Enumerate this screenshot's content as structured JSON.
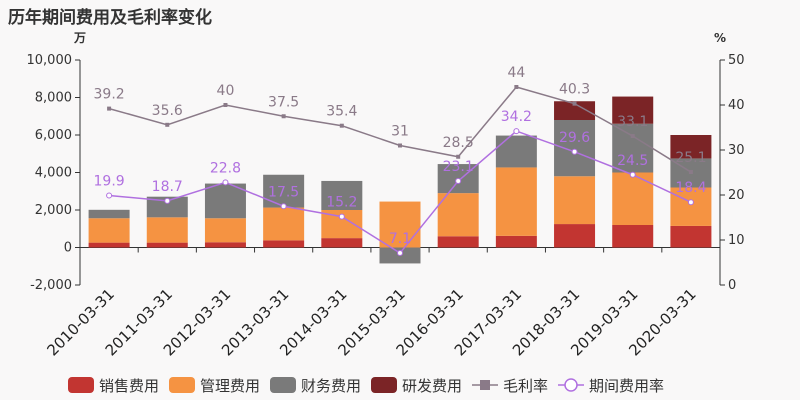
{
  "title": "历年期间费用及毛利率变化",
  "chart_data": {
    "type": "bar",
    "stacked": true,
    "title": "历年期间费用及毛利率变化",
    "y_left_unit": "万",
    "y_right_unit": "%",
    "ylim_left": [
      -2000,
      10000
    ],
    "ylim_right": [
      0,
      50
    ],
    "y_left_ticks": [
      "-2,000",
      "0",
      "2,000",
      "4,000",
      "6,000",
      "8,000",
      "10,000"
    ],
    "y_right_ticks": [
      "0",
      "10",
      "20",
      "30",
      "40",
      "50"
    ],
    "categories": [
      "2010-03-31",
      "2011-03-31",
      "2012-03-31",
      "2013-03-31",
      "2014-03-31",
      "2015-03-31",
      "2016-03-31",
      "2017-03-31",
      "2018-03-31",
      "2019-03-31",
      "2020-03-31"
    ],
    "series": [
      {
        "name": "销售费用",
        "color": "#c23531",
        "values": [
          260,
          260,
          280,
          380,
          500,
          0,
          600,
          620,
          1250,
          1200,
          1150
        ]
      },
      {
        "name": "管理费用",
        "color": "#f59342",
        "values": [
          1300,
          1350,
          1280,
          1750,
          1500,
          2450,
          2300,
          3650,
          2550,
          2800,
          2050
        ]
      },
      {
        "name": "财务费用",
        "color": "#7a7a7a",
        "values": [
          450,
          1100,
          1850,
          1750,
          1550,
          -850,
          1550,
          1700,
          3000,
          2600,
          1550
        ]
      },
      {
        "name": "研发费用",
        "color": "#7b2426",
        "values": [
          0,
          0,
          0,
          0,
          0,
          0,
          0,
          0,
          1000,
          1450,
          1250
        ]
      }
    ],
    "lines": [
      {
        "name": "毛利率",
        "color": "#8a7a88",
        "values": [
          39.2,
          35.6,
          40,
          37.5,
          35.4,
          31,
          28.5,
          44,
          40.3,
          33.1,
          25.1
        ],
        "labels": [
          "39.2",
          "35.6",
          "40",
          "37.5",
          "35.4",
          "31",
          "28.5",
          "44",
          "40.3",
          "33.1",
          "25.1"
        ]
      },
      {
        "name": "期间费用率",
        "color": "#b070e0",
        "values": [
          19.9,
          18.7,
          22.8,
          17.5,
          15.2,
          7.1,
          23.1,
          34.2,
          29.6,
          24.5,
          18.4
        ],
        "labels": [
          "19.9",
          "18.7",
          "22.8",
          "17.5",
          "15.2",
          "7.1",
          "23.1",
          "34.2",
          "29.6",
          "24.5",
          "18.4"
        ]
      }
    ]
  }
}
